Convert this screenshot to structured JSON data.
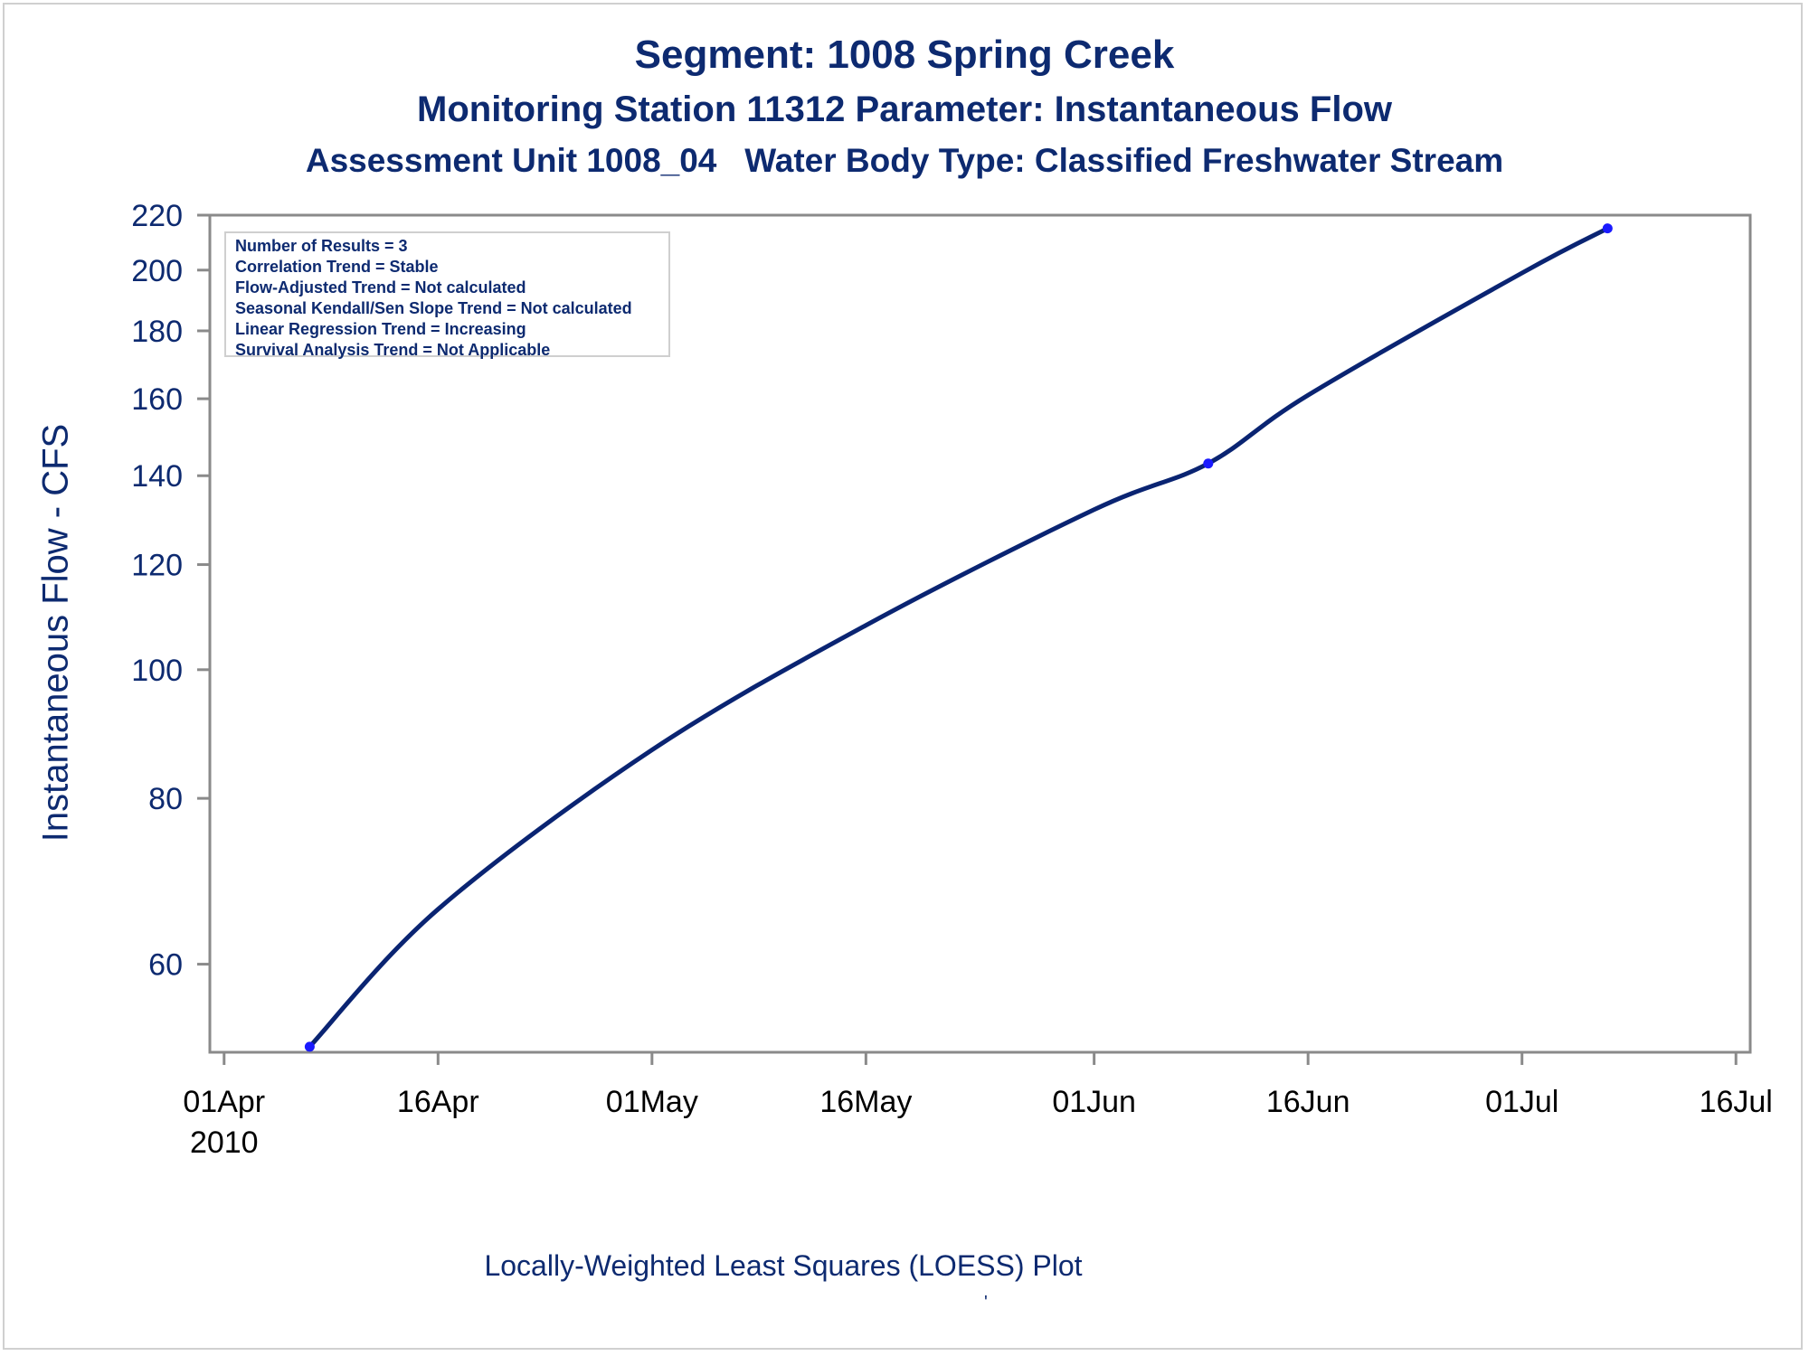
{
  "chart_data": {
    "type": "line",
    "title": "Segment: 1008  Spring Creek",
    "subtitle": "Monitoring Station 11312 Parameter: Instantaneous Flow",
    "subtitle2": "Assessment Unit 1008_04   Water Body Type: Classified Freshwater Stream",
    "ylabel": "Instantaneous Flow - CFS",
    "xlabel": "",
    "footnote": "Locally-Weighted Least Squares (LOESS) Plot",
    "footnote_mark": "'",
    "y_scale": "log",
    "ylim": [
      51.5,
      220
    ],
    "xlim": [
      "2010-03-31",
      "2010-07-17"
    ],
    "y_ticks": [
      60,
      80,
      100,
      120,
      140,
      160,
      180,
      200,
      220
    ],
    "x_ticks": [
      {
        "date": "2010-04-01",
        "label": "01Apr",
        "sublabel": "2010"
      },
      {
        "date": "2010-04-16",
        "label": "16Apr",
        "sublabel": ""
      },
      {
        "date": "2010-05-01",
        "label": "01May",
        "sublabel": ""
      },
      {
        "date": "2010-05-16",
        "label": "16May",
        "sublabel": ""
      },
      {
        "date": "2010-06-01",
        "label": "01Jun",
        "sublabel": ""
      },
      {
        "date": "2010-06-16",
        "label": "16Jun",
        "sublabel": ""
      },
      {
        "date": "2010-07-01",
        "label": "01Jul",
        "sublabel": ""
      },
      {
        "date": "2010-07-16",
        "label": "16Jul",
        "sublabel": ""
      }
    ],
    "points": [
      {
        "date": "2010-04-07",
        "value": 52
      },
      {
        "date": "2010-06-09",
        "value": 143
      },
      {
        "date": "2010-07-07",
        "value": 215
      }
    ],
    "series": [
      {
        "type": "loess",
        "x": [
          "2010-04-07",
          "2010-04-16",
          "2010-05-01",
          "2010-05-16",
          "2010-06-01",
          "2010-06-09",
          "2010-06-16",
          "2010-07-01",
          "2010-07-07"
        ],
        "values": [
          52,
          66,
          87,
          108,
          132,
          143,
          161,
          199,
          215
        ]
      }
    ],
    "grid": false,
    "stats": [
      "Number of Results = 3",
      "Correlation Trend = Stable",
      "Flow-Adjusted Trend = Not calculated",
      "Seasonal Kendall/Sen Slope Trend = Not calculated",
      "Linear Regression Trend = Increasing",
      "Survival Analysis Trend = Not Applicable"
    ],
    "colors": {
      "text": "#0d2a70",
      "line": "#0a2472",
      "point": "#1a1aff",
      "axis": "#8a8a8a"
    }
  }
}
